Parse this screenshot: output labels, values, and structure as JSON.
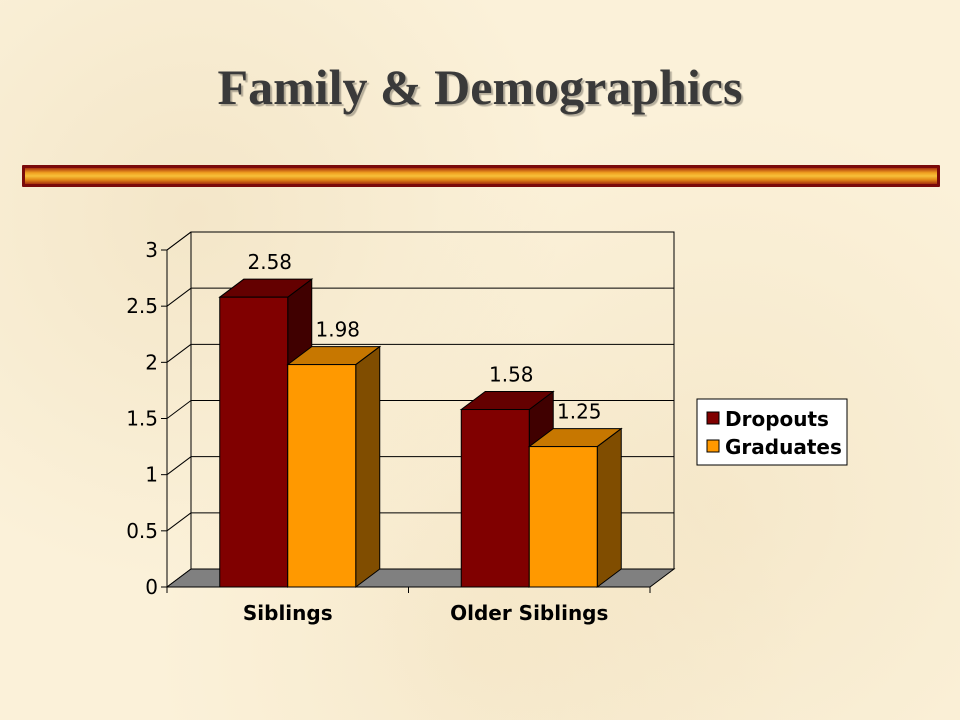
{
  "slide": {
    "title": "Family & Demographics"
  },
  "chart_data": {
    "type": "bar",
    "style": "3d-clustered-column",
    "categories": [
      "Siblings",
      "Older Siblings"
    ],
    "series": [
      {
        "name": "Dropouts",
        "values": [
          2.58,
          1.58
        ],
        "color": "#800000"
      },
      {
        "name": "Graduates",
        "values": [
          1.98,
          1.25
        ],
        "color": "#ff9900"
      }
    ],
    "data_labels": [
      [
        "2.58",
        "1.58"
      ],
      [
        "1.98",
        "1.25"
      ]
    ],
    "ylim": [
      0,
      3
    ],
    "yticks": [
      0,
      0.5,
      1,
      1.5,
      2,
      2.5,
      3
    ],
    "ytick_labels": [
      "0",
      "0.5",
      "1",
      "1.5",
      "2",
      "2.5",
      "3"
    ],
    "grid": true,
    "legend_position": "right",
    "floor_color": "#808080",
    "title": "",
    "xlabel": "",
    "ylabel": ""
  }
}
